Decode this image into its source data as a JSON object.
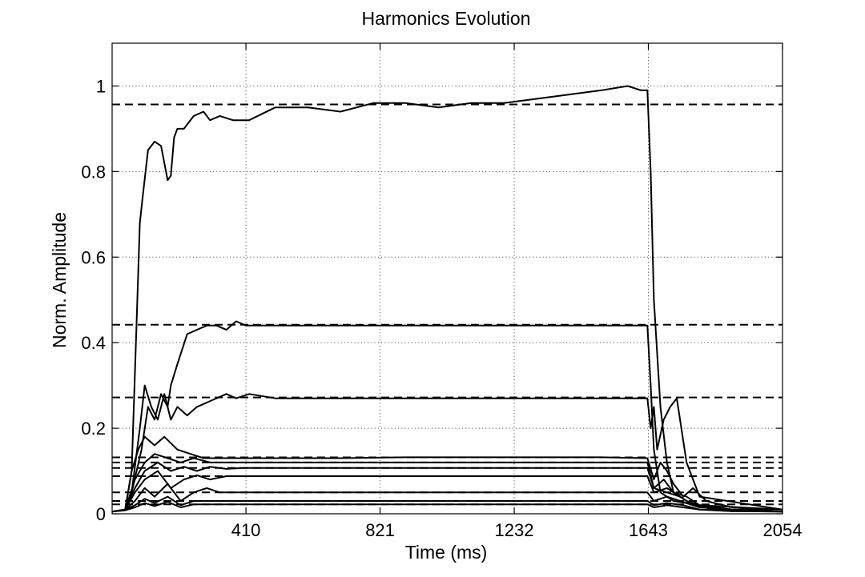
{
  "chart_data": {
    "type": "line",
    "title": "Harmonics Evolution",
    "xlabel": "Time (ms)",
    "ylabel": "Norm. Amplitude",
    "xlim": [
      0,
      2054
    ],
    "ylim": [
      0,
      1.1
    ],
    "xticks": [
      410,
      821,
      1232,
      1643,
      2054
    ],
    "xtick_labels": [
      "410",
      "821",
      "1232",
      "1643",
      "2054"
    ],
    "yticks": [
      0,
      0.2,
      0.4,
      0.6,
      0.8,
      1
    ],
    "ytick_labels": [
      "0",
      "0.2",
      "0.4",
      "0.6",
      "0.8",
      "1"
    ],
    "grid": true,
    "line_color": "#000000",
    "reference_levels": [
      0.957,
      0.442,
      0.272,
      0.132,
      0.12,
      0.107,
      0.088,
      0.05,
      0.03,
      0.022
    ],
    "series": [
      {
        "x": [
          0,
          40,
          60,
          75,
          85,
          95,
          110,
          130,
          150,
          170,
          180,
          190,
          200,
          220,
          250,
          280,
          300,
          330,
          370,
          420,
          500,
          600,
          700,
          800,
          900,
          1000,
          1100,
          1200,
          1300,
          1400,
          1500,
          1580,
          1620,
          1640,
          1650,
          1660,
          1680,
          1700,
          1720,
          1760,
          1800,
          1900,
          2054
        ],
        "y": [
          0.005,
          0.01,
          0.1,
          0.45,
          0.68,
          0.75,
          0.85,
          0.87,
          0.86,
          0.78,
          0.79,
          0.88,
          0.9,
          0.9,
          0.93,
          0.94,
          0.92,
          0.93,
          0.92,
          0.92,
          0.95,
          0.95,
          0.94,
          0.96,
          0.96,
          0.95,
          0.96,
          0.96,
          0.97,
          0.98,
          0.99,
          1.0,
          0.99,
          0.99,
          0.8,
          0.5,
          0.25,
          0.12,
          0.05,
          0.03,
          0.02,
          0.01,
          0.005
        ]
      },
      {
        "x": [
          0,
          40,
          60,
          90,
          110,
          130,
          150,
          170,
          180,
          200,
          230,
          260,
          290,
          320,
          350,
          380,
          410,
          460,
          550,
          700,
          900,
          1100,
          1300,
          1500,
          1600,
          1640,
          1650,
          1660,
          1680,
          1720,
          1800,
          2054
        ],
        "y": [
          0.005,
          0.01,
          0.05,
          0.15,
          0.25,
          0.22,
          0.28,
          0.25,
          0.3,
          0.35,
          0.42,
          0.43,
          0.44,
          0.44,
          0.43,
          0.45,
          0.44,
          0.44,
          0.44,
          0.44,
          0.44,
          0.44,
          0.44,
          0.44,
          0.44,
          0.44,
          0.3,
          0.15,
          0.05,
          0.03,
          0.02,
          0.01
        ]
      },
      {
        "x": [
          0,
          40,
          60,
          85,
          100,
          120,
          140,
          160,
          180,
          200,
          230,
          260,
          290,
          320,
          350,
          380,
          420,
          500,
          700,
          900,
          1100,
          1300,
          1500,
          1640,
          1650,
          1660,
          1670,
          1690,
          1710,
          1730,
          1760,
          1800,
          2054
        ],
        "y": [
          0.005,
          0.01,
          0.05,
          0.2,
          0.3,
          0.25,
          0.22,
          0.28,
          0.22,
          0.25,
          0.23,
          0.25,
          0.26,
          0.27,
          0.28,
          0.27,
          0.28,
          0.27,
          0.27,
          0.27,
          0.27,
          0.27,
          0.27,
          0.27,
          0.2,
          0.25,
          0.15,
          0.22,
          0.25,
          0.27,
          0.12,
          0.04,
          0.01
        ]
      },
      {
        "x": [
          0,
          40,
          60,
          80,
          100,
          130,
          160,
          200,
          240,
          280,
          320,
          360,
          400,
          500,
          700,
          900,
          1100,
          1300,
          1500,
          1640,
          1660,
          1680,
          1700,
          1720,
          1750,
          1780,
          1820,
          1900,
          2054
        ],
        "y": [
          0.005,
          0.01,
          0.1,
          0.15,
          0.18,
          0.16,
          0.18,
          0.15,
          0.14,
          0.13,
          0.13,
          0.13,
          0.13,
          0.13,
          0.13,
          0.132,
          0.132,
          0.132,
          0.132,
          0.13,
          0.08,
          0.12,
          0.1,
          0.07,
          0.04,
          0.06,
          0.03,
          0.015,
          0.005
        ]
      },
      {
        "x": [
          0,
          40,
          70,
          100,
          130,
          170,
          210,
          250,
          300,
          350,
          400,
          500,
          700,
          900,
          1100,
          1300,
          1500,
          1640,
          1660,
          1690,
          1720,
          1760,
          1800,
          1900,
          2054
        ],
        "y": [
          0.005,
          0.01,
          0.08,
          0.12,
          0.14,
          0.13,
          0.12,
          0.13,
          0.12,
          0.12,
          0.12,
          0.12,
          0.12,
          0.12,
          0.12,
          0.12,
          0.12,
          0.12,
          0.06,
          0.08,
          0.05,
          0.04,
          0.02,
          0.01,
          0.005
        ]
      },
      {
        "x": [
          0,
          40,
          70,
          100,
          140,
          180,
          220,
          260,
          300,
          350,
          400,
          500,
          700,
          900,
          1100,
          1300,
          1500,
          1640,
          1660,
          1700,
          1740,
          1780,
          1850,
          2054
        ],
        "y": [
          0.005,
          0.01,
          0.06,
          0.1,
          0.12,
          0.1,
          0.11,
          0.1,
          0.11,
          0.105,
          0.107,
          0.107,
          0.107,
          0.107,
          0.107,
          0.107,
          0.107,
          0.107,
          0.06,
          0.05,
          0.04,
          0.02,
          0.01,
          0.005
        ]
      },
      {
        "x": [
          0,
          40,
          70,
          100,
          140,
          180,
          220,
          260,
          300,
          350,
          400,
          500,
          700,
          900,
          1100,
          1300,
          1500,
          1640,
          1660,
          1700,
          1740,
          1780,
          1850,
          2054
        ],
        "y": [
          0.005,
          0.01,
          0.05,
          0.08,
          0.1,
          0.06,
          0.08,
          0.09,
          0.08,
          0.088,
          0.088,
          0.088,
          0.088,
          0.088,
          0.088,
          0.088,
          0.088,
          0.088,
          0.05,
          0.06,
          0.04,
          0.02,
          0.01,
          0.005
        ]
      },
      {
        "x": [
          0,
          40,
          70,
          100,
          130,
          170,
          210,
          250,
          290,
          330,
          400,
          500,
          700,
          900,
          1100,
          1300,
          1500,
          1640,
          1660,
          1700,
          1740,
          1800,
          1900,
          2054
        ],
        "y": [
          0.005,
          0.01,
          0.03,
          0.06,
          0.04,
          0.07,
          0.03,
          0.05,
          0.06,
          0.05,
          0.05,
          0.05,
          0.05,
          0.05,
          0.05,
          0.05,
          0.05,
          0.05,
          0.03,
          0.04,
          0.03,
          0.015,
          0.01,
          0.005
        ]
      },
      {
        "x": [
          0,
          40,
          70,
          100,
          130,
          170,
          210,
          250,
          300,
          350,
          400,
          500,
          700,
          900,
          1100,
          1300,
          1500,
          1640,
          1660,
          1700,
          1750,
          1800,
          1900,
          2054
        ],
        "y": [
          0.005,
          0.01,
          0.02,
          0.035,
          0.025,
          0.04,
          0.02,
          0.03,
          0.03,
          0.03,
          0.03,
          0.03,
          0.03,
          0.03,
          0.03,
          0.03,
          0.03,
          0.03,
          0.02,
          0.025,
          0.02,
          0.01,
          0.006,
          0.005
        ]
      },
      {
        "x": [
          0,
          40,
          70,
          100,
          130,
          170,
          210,
          250,
          300,
          400,
          500,
          700,
          900,
          1100,
          1300,
          1500,
          1640,
          1660,
          1700,
          1750,
          1800,
          1900,
          2054
        ],
        "y": [
          0.005,
          0.008,
          0.015,
          0.025,
          0.018,
          0.028,
          0.015,
          0.022,
          0.022,
          0.022,
          0.022,
          0.022,
          0.022,
          0.022,
          0.022,
          0.022,
          0.022,
          0.015,
          0.02,
          0.015,
          0.01,
          0.006,
          0.005
        ]
      }
    ]
  }
}
